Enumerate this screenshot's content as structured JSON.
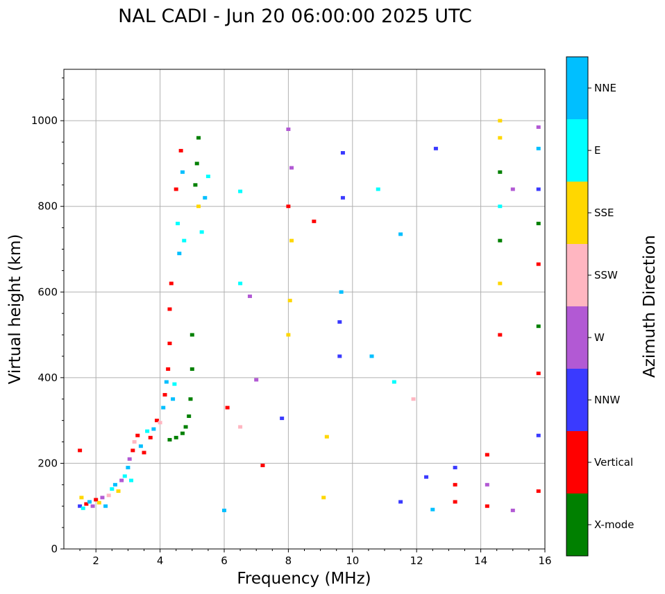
{
  "chart_data": {
    "type": "scatter",
    "title": "NAL CADI - Jun 20 06:00:00 2025 UTC",
    "xlabel": "Frequency (MHz)",
    "ylabel": "Virtual height (km)",
    "xlim": [
      1,
      16
    ],
    "ylim": [
      0,
      1120
    ],
    "xticks": [
      2,
      4,
      6,
      8,
      10,
      12,
      14,
      16
    ],
    "yticks": [
      0,
      200,
      400,
      600,
      800,
      1000
    ],
    "grid": true,
    "colorbar": {
      "title": "Azimuth Direction",
      "categories": [
        {
          "name": "X-mode",
          "color": "#008000"
        },
        {
          "name": "Vertical",
          "color": "#ff0000"
        },
        {
          "name": "NNW",
          "color": "#3a3aff"
        },
        {
          "name": "W",
          "color": "#b259d4"
        },
        {
          "name": "SSW",
          "color": "#ffb6c1"
        },
        {
          "name": "SSE",
          "color": "#ffd700"
        },
        {
          "name": "E",
          "color": "#00ffff"
        },
        {
          "name": "NNE",
          "color": "#00bfff"
        }
      ]
    },
    "points": [
      {
        "f": 1.5,
        "h": 100,
        "d": "NNW"
      },
      {
        "f": 1.5,
        "h": 230,
        "d": "Vertical"
      },
      {
        "f": 1.55,
        "h": 120,
        "d": "SSE"
      },
      {
        "f": 1.6,
        "h": 95,
        "d": "E"
      },
      {
        "f": 1.7,
        "h": 105,
        "d": "Vertical"
      },
      {
        "f": 1.8,
        "h": 110,
        "d": "NNE"
      },
      {
        "f": 1.9,
        "h": 100,
        "d": "W"
      },
      {
        "f": 2.0,
        "h": 115,
        "d": "Vertical"
      },
      {
        "f": 2.1,
        "h": 108,
        "d": "SSE"
      },
      {
        "f": 2.2,
        "h": 120,
        "d": "W"
      },
      {
        "f": 2.3,
        "h": 100,
        "d": "NNE"
      },
      {
        "f": 2.4,
        "h": 125,
        "d": "SSW"
      },
      {
        "f": 2.5,
        "h": 140,
        "d": "E"
      },
      {
        "f": 2.6,
        "h": 150,
        "d": "NNE"
      },
      {
        "f": 2.7,
        "h": 135,
        "d": "SSE"
      },
      {
        "f": 2.8,
        "h": 160,
        "d": "W"
      },
      {
        "f": 2.9,
        "h": 170,
        "d": "E"
      },
      {
        "f": 3.0,
        "h": 190,
        "d": "NNE"
      },
      {
        "f": 3.05,
        "h": 210,
        "d": "W"
      },
      {
        "f": 3.1,
        "h": 160,
        "d": "E"
      },
      {
        "f": 3.15,
        "h": 230,
        "d": "Vertical"
      },
      {
        "f": 3.2,
        "h": 250,
        "d": "SSW"
      },
      {
        "f": 3.3,
        "h": 265,
        "d": "Vertical"
      },
      {
        "f": 3.4,
        "h": 240,
        "d": "NNE"
      },
      {
        "f": 3.5,
        "h": 225,
        "d": "Vertical"
      },
      {
        "f": 3.6,
        "h": 275,
        "d": "E"
      },
      {
        "f": 3.7,
        "h": 260,
        "d": "Vertical"
      },
      {
        "f": 3.8,
        "h": 280,
        "d": "NNE"
      },
      {
        "f": 3.9,
        "h": 300,
        "d": "Vertical"
      },
      {
        "f": 4.0,
        "h": 295,
        "d": "SSW"
      },
      {
        "f": 4.1,
        "h": 330,
        "d": "NNE"
      },
      {
        "f": 4.15,
        "h": 360,
        "d": "Vertical"
      },
      {
        "f": 4.2,
        "h": 390,
        "d": "NNE"
      },
      {
        "f": 4.25,
        "h": 420,
        "d": "Vertical"
      },
      {
        "f": 4.3,
        "h": 480,
        "d": "Vertical"
      },
      {
        "f": 4.3,
        "h": 560,
        "d": "Vertical"
      },
      {
        "f": 4.35,
        "h": 620,
        "d": "Vertical"
      },
      {
        "f": 4.4,
        "h": 350,
        "d": "NNE"
      },
      {
        "f": 4.45,
        "h": 385,
        "d": "E"
      },
      {
        "f": 4.5,
        "h": 840,
        "d": "Vertical"
      },
      {
        "f": 4.55,
        "h": 760,
        "d": "E"
      },
      {
        "f": 4.6,
        "h": 690,
        "d": "NNE"
      },
      {
        "f": 4.65,
        "h": 930,
        "d": "Vertical"
      },
      {
        "f": 4.7,
        "h": 880,
        "d": "NNE"
      },
      {
        "f": 4.75,
        "h": 720,
        "d": "E"
      },
      {
        "f": 4.3,
        "h": 255,
        "d": "X-mode"
      },
      {
        "f": 4.5,
        "h": 260,
        "d": "X-mode"
      },
      {
        "f": 4.7,
        "h": 270,
        "d": "X-mode"
      },
      {
        "f": 4.8,
        "h": 285,
        "d": "X-mode"
      },
      {
        "f": 4.9,
        "h": 310,
        "d": "X-mode"
      },
      {
        "f": 4.95,
        "h": 350,
        "d": "X-mode"
      },
      {
        "f": 5.0,
        "h": 420,
        "d": "X-mode"
      },
      {
        "f": 5.0,
        "h": 500,
        "d": "X-mode"
      },
      {
        "f": 5.1,
        "h": 850,
        "d": "X-mode"
      },
      {
        "f": 5.15,
        "h": 900,
        "d": "X-mode"
      },
      {
        "f": 5.2,
        "h": 960,
        "d": "X-mode"
      },
      {
        "f": 5.2,
        "h": 800,
        "d": "SSE"
      },
      {
        "f": 5.3,
        "h": 740,
        "d": "E"
      },
      {
        "f": 5.4,
        "h": 820,
        "d": "NNE"
      },
      {
        "f": 5.5,
        "h": 870,
        "d": "E"
      },
      {
        "f": 6.0,
        "h": 90,
        "d": "NNE"
      },
      {
        "f": 6.1,
        "h": 330,
        "d": "Vertical"
      },
      {
        "f": 6.5,
        "h": 620,
        "d": "E"
      },
      {
        "f": 6.5,
        "h": 835,
        "d": "E"
      },
      {
        "f": 6.5,
        "h": 285,
        "d": "SSW"
      },
      {
        "f": 6.8,
        "h": 590,
        "d": "W"
      },
      {
        "f": 7.0,
        "h": 395,
        "d": "W"
      },
      {
        "f": 7.2,
        "h": 195,
        "d": "Vertical"
      },
      {
        "f": 7.8,
        "h": 305,
        "d": "NNW"
      },
      {
        "f": 8.0,
        "h": 500,
        "d": "SSE"
      },
      {
        "f": 8.05,
        "h": 580,
        "d": "SSE"
      },
      {
        "f": 8.1,
        "h": 720,
        "d": "SSE"
      },
      {
        "f": 8.0,
        "h": 800,
        "d": "Vertical"
      },
      {
        "f": 8.1,
        "h": 890,
        "d": "W"
      },
      {
        "f": 8.0,
        "h": 980,
        "d": "W"
      },
      {
        "f": 8.8,
        "h": 765,
        "d": "Vertical"
      },
      {
        "f": 9.1,
        "h": 120,
        "d": "SSE"
      },
      {
        "f": 9.2,
        "h": 262,
        "d": "SSE"
      },
      {
        "f": 9.6,
        "h": 450,
        "d": "NNW"
      },
      {
        "f": 9.6,
        "h": 530,
        "d": "NNW"
      },
      {
        "f": 9.65,
        "h": 600,
        "d": "NNE"
      },
      {
        "f": 9.7,
        "h": 820,
        "d": "NNW"
      },
      {
        "f": 9.7,
        "h": 925,
        "d": "NNW"
      },
      {
        "f": 10.6,
        "h": 450,
        "d": "NNE"
      },
      {
        "f": 10.8,
        "h": 840,
        "d": "E"
      },
      {
        "f": 11.3,
        "h": 390,
        "d": "E"
      },
      {
        "f": 11.5,
        "h": 110,
        "d": "NNW"
      },
      {
        "f": 11.5,
        "h": 735,
        "d": "NNE"
      },
      {
        "f": 11.9,
        "h": 350,
        "d": "SSW"
      },
      {
        "f": 12.3,
        "h": 168,
        "d": "NNW"
      },
      {
        "f": 12.5,
        "h": 92,
        "d": "NNE"
      },
      {
        "f": 12.6,
        "h": 935,
        "d": "NNW"
      },
      {
        "f": 13.2,
        "h": 110,
        "d": "Vertical"
      },
      {
        "f": 13.2,
        "h": 150,
        "d": "Vertical"
      },
      {
        "f": 13.2,
        "h": 190,
        "d": "NNW"
      },
      {
        "f": 14.2,
        "h": 100,
        "d": "Vertical"
      },
      {
        "f": 14.2,
        "h": 150,
        "d": "W"
      },
      {
        "f": 14.2,
        "h": 220,
        "d": "Vertical"
      },
      {
        "f": 14.6,
        "h": 500,
        "d": "Vertical"
      },
      {
        "f": 14.6,
        "h": 620,
        "d": "SSE"
      },
      {
        "f": 14.6,
        "h": 720,
        "d": "X-mode"
      },
      {
        "f": 14.6,
        "h": 800,
        "d": "E"
      },
      {
        "f": 14.6,
        "h": 880,
        "d": "X-mode"
      },
      {
        "f": 14.6,
        "h": 960,
        "d": "SSE"
      },
      {
        "f": 14.6,
        "h": 1000,
        "d": "SSE"
      },
      {
        "f": 15.0,
        "h": 90,
        "d": "W"
      },
      {
        "f": 15.0,
        "h": 840,
        "d": "W"
      },
      {
        "f": 15.8,
        "h": 135,
        "d": "Vertical"
      },
      {
        "f": 15.8,
        "h": 265,
        "d": "NNW"
      },
      {
        "f": 15.8,
        "h": 410,
        "d": "Vertical"
      },
      {
        "f": 15.8,
        "h": 520,
        "d": "X-mode"
      },
      {
        "f": 15.8,
        "h": 665,
        "d": "Vertical"
      },
      {
        "f": 15.8,
        "h": 760,
        "d": "X-mode"
      },
      {
        "f": 15.8,
        "h": 840,
        "d": "NNW"
      },
      {
        "f": 15.8,
        "h": 935,
        "d": "NNE"
      },
      {
        "f": 15.8,
        "h": 985,
        "d": "W"
      }
    ]
  }
}
